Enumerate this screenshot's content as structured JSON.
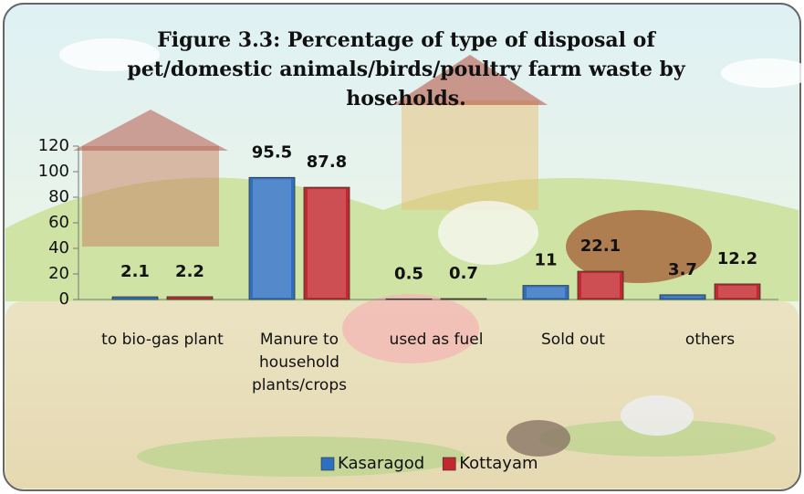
{
  "chart_data": {
    "type": "bar",
    "title": "Figure 3.3: Percentage of type of disposal of pet/domestic animals/birds/poultry farm waste by hoseholds.",
    "categories": [
      "to bio-gas plant",
      "Manure to household plants/crops",
      "used as fuel",
      "Sold out",
      "others"
    ],
    "series": [
      {
        "name": "Kasaragod",
        "color": "#2f6fc0",
        "values": [
          2.1,
          95.5,
          0.5,
          11,
          3.7
        ]
      },
      {
        "name": "Kottayam",
        "color": "#c3282e",
        "values": [
          2.2,
          87.8,
          0.7,
          22.1,
          12.2
        ]
      }
    ],
    "ylim": [
      0,
      120
    ],
    "yticks": [
      0,
      20,
      40,
      60,
      80,
      100,
      120
    ],
    "legend": "bottom"
  }
}
